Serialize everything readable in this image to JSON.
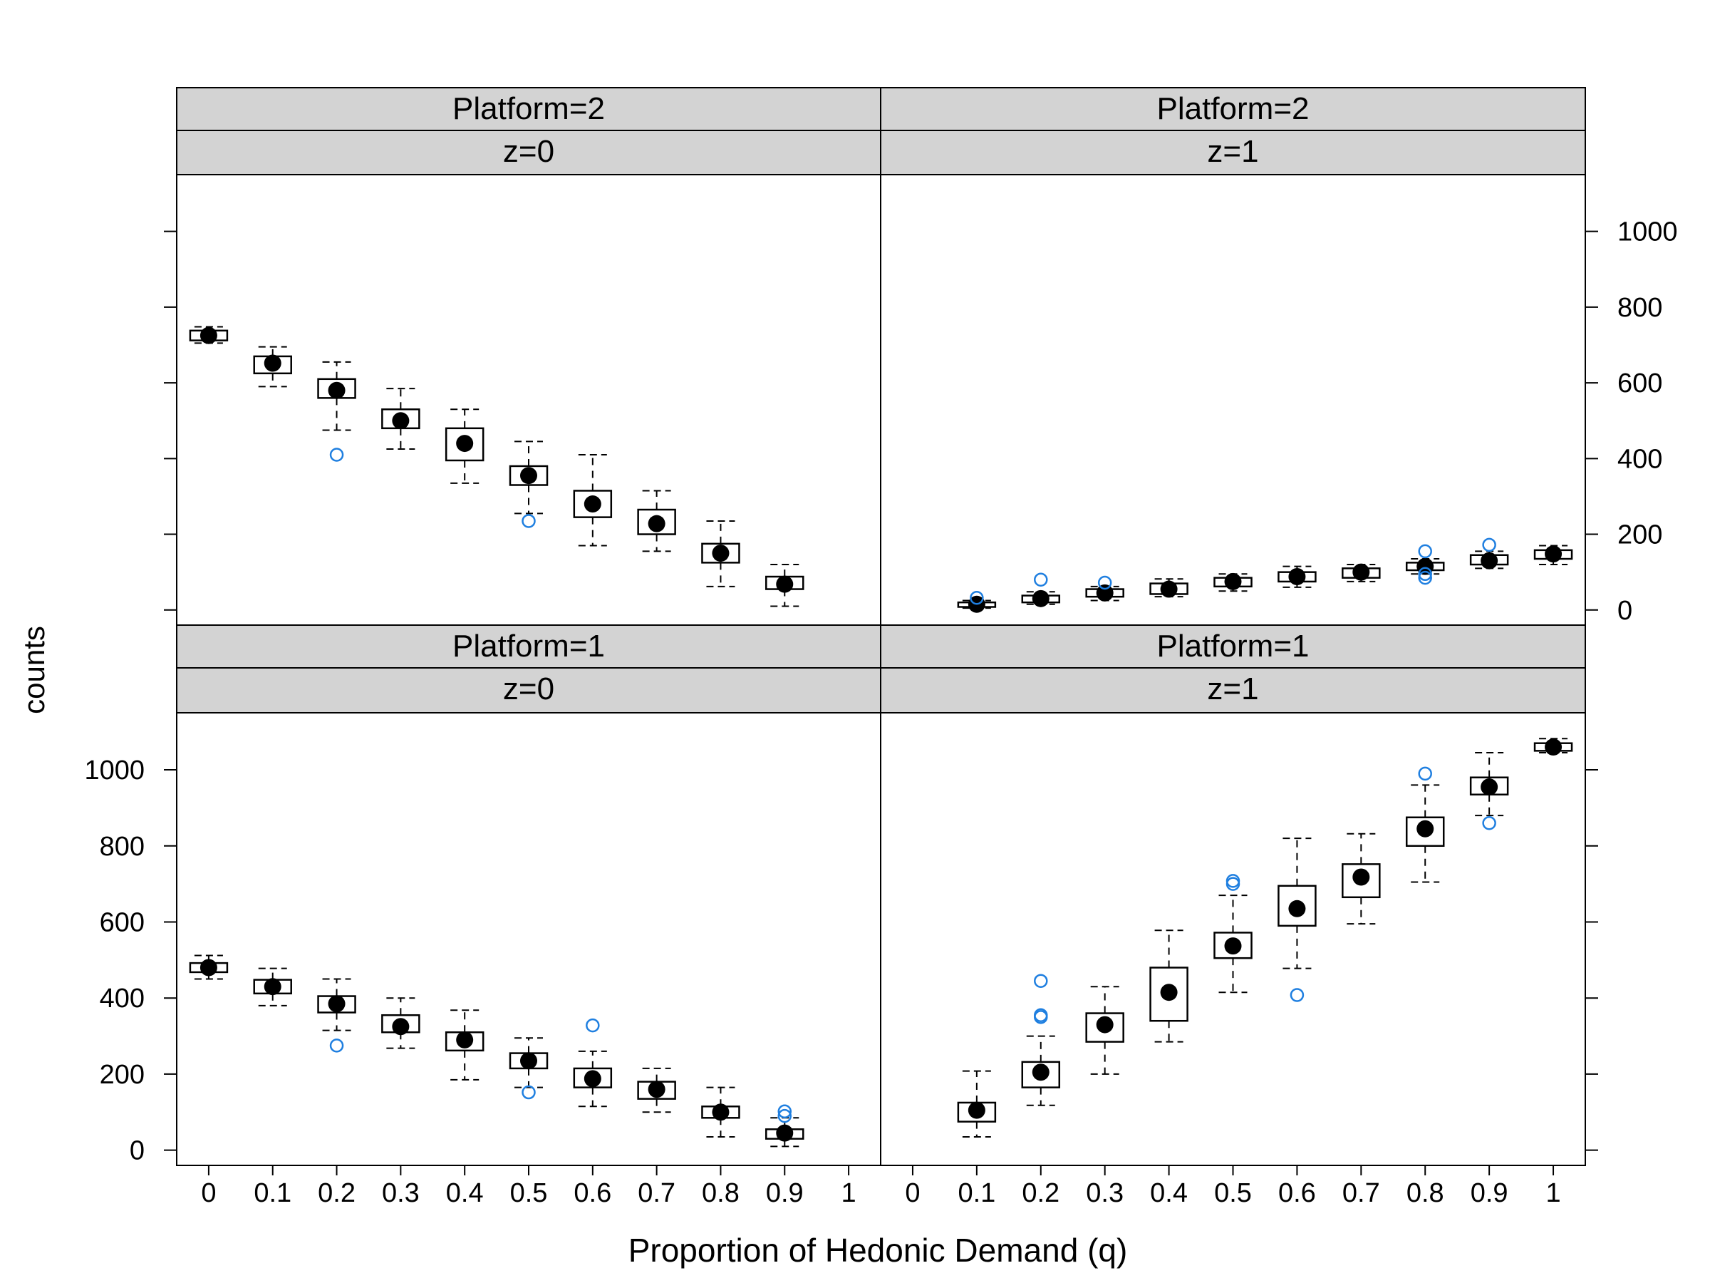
{
  "chart_data": {
    "type": "boxplot",
    "xlabel": "Proportion of Hedonic Demand (q)",
    "ylabel": "counts",
    "x_ticks": [
      "0",
      "0.1",
      "0.2",
      "0.3",
      "0.4",
      "0.5",
      "0.6",
      "0.7",
      "0.8",
      "0.9",
      "1"
    ],
    "y_ticks": [
      "0",
      "200",
      "400",
      "600",
      "800",
      "1000"
    ],
    "ylim": [
      -40,
      1150
    ],
    "colors": {
      "strip_bg": "#d3d3d3",
      "median_dot": "#000000",
      "outlier": "#1f7fe0",
      "frame": "#000000"
    },
    "panels": [
      {
        "id": "p2z0",
        "strip1": "Platform=2",
        "strip2": "z=0",
        "boxes": [
          {
            "x": 0.0,
            "min": 705,
            "q1": 712,
            "med": 725,
            "q3": 738,
            "max": 748,
            "out": []
          },
          {
            "x": 0.1,
            "min": 590,
            "q1": 625,
            "med": 652,
            "q3": 670,
            "max": 695,
            "out": []
          },
          {
            "x": 0.2,
            "min": 475,
            "q1": 560,
            "med": 580,
            "q3": 610,
            "max": 655,
            "out": [
              410
            ]
          },
          {
            "x": 0.3,
            "min": 425,
            "q1": 480,
            "med": 500,
            "q3": 530,
            "max": 585,
            "out": []
          },
          {
            "x": 0.4,
            "min": 335,
            "q1": 395,
            "med": 440,
            "q3": 480,
            "max": 530,
            "out": []
          },
          {
            "x": 0.5,
            "min": 255,
            "q1": 330,
            "med": 355,
            "q3": 380,
            "max": 445,
            "out": [
              235
            ]
          },
          {
            "x": 0.6,
            "min": 170,
            "q1": 245,
            "med": 280,
            "q3": 315,
            "max": 410,
            "out": []
          },
          {
            "x": 0.7,
            "min": 155,
            "q1": 200,
            "med": 228,
            "q3": 265,
            "max": 315,
            "out": []
          },
          {
            "x": 0.8,
            "min": 62,
            "q1": 125,
            "med": 150,
            "q3": 175,
            "max": 235,
            "out": []
          },
          {
            "x": 0.9,
            "min": 10,
            "q1": 55,
            "med": 68,
            "q3": 88,
            "max": 120,
            "out": []
          }
        ]
      },
      {
        "id": "p2z1",
        "strip1": "Platform=2",
        "strip2": "z=1",
        "boxes": [
          {
            "x": 0.1,
            "min": 5,
            "q1": 8,
            "med": 15,
            "q3": 20,
            "max": 25,
            "out": [
              32
            ]
          },
          {
            "x": 0.2,
            "min": 15,
            "q1": 20,
            "med": 30,
            "q3": 38,
            "max": 48,
            "out": [
              80
            ]
          },
          {
            "x": 0.3,
            "min": 25,
            "q1": 35,
            "med": 45,
            "q3": 55,
            "max": 62,
            "out": [
              72
            ]
          },
          {
            "x": 0.4,
            "min": 35,
            "q1": 42,
            "med": 55,
            "q3": 70,
            "max": 82,
            "out": []
          },
          {
            "x": 0.5,
            "min": 50,
            "q1": 62,
            "med": 75,
            "q3": 85,
            "max": 95,
            "out": []
          },
          {
            "x": 0.6,
            "min": 60,
            "q1": 75,
            "med": 88,
            "q3": 100,
            "max": 115,
            "out": []
          },
          {
            "x": 0.7,
            "min": 75,
            "q1": 85,
            "med": 100,
            "q3": 110,
            "max": 120,
            "out": []
          },
          {
            "x": 0.8,
            "min": 95,
            "q1": 105,
            "med": 115,
            "q3": 125,
            "max": 135,
            "out": [
              85,
              95,
              155
            ]
          },
          {
            "x": 0.9,
            "min": 110,
            "q1": 120,
            "med": 130,
            "q3": 145,
            "max": 155,
            "out": [
              172
            ]
          },
          {
            "x": 1.0,
            "min": 120,
            "q1": 135,
            "med": 148,
            "q3": 158,
            "max": 170,
            "out": []
          }
        ]
      },
      {
        "id": "p1z0",
        "strip1": "Platform=1",
        "strip2": "z=0",
        "boxes": [
          {
            "x": 0.0,
            "min": 450,
            "q1": 468,
            "med": 480,
            "q3": 492,
            "max": 512,
            "out": []
          },
          {
            "x": 0.1,
            "min": 380,
            "q1": 412,
            "med": 430,
            "q3": 448,
            "max": 478,
            "out": []
          },
          {
            "x": 0.2,
            "min": 315,
            "q1": 362,
            "med": 385,
            "q3": 405,
            "max": 450,
            "out": [
              275
            ]
          },
          {
            "x": 0.3,
            "min": 268,
            "q1": 310,
            "med": 325,
            "q3": 355,
            "max": 400,
            "out": []
          },
          {
            "x": 0.4,
            "min": 185,
            "q1": 262,
            "med": 290,
            "q3": 310,
            "max": 368,
            "out": []
          },
          {
            "x": 0.5,
            "min": 165,
            "q1": 215,
            "med": 235,
            "q3": 255,
            "max": 295,
            "out": [
              152
            ]
          },
          {
            "x": 0.6,
            "min": 115,
            "q1": 165,
            "med": 188,
            "q3": 215,
            "max": 260,
            "out": [
              328
            ]
          },
          {
            "x": 0.7,
            "min": 100,
            "q1": 135,
            "med": 160,
            "q3": 180,
            "max": 215,
            "out": []
          },
          {
            "x": 0.8,
            "min": 35,
            "q1": 85,
            "med": 100,
            "q3": 115,
            "max": 165,
            "out": []
          },
          {
            "x": 0.9,
            "min": 10,
            "q1": 30,
            "med": 45,
            "q3": 55,
            "max": 85,
            "out": [
              90,
              102
            ]
          }
        ]
      },
      {
        "id": "p1z1",
        "strip1": "Platform=1",
        "strip2": "z=1",
        "boxes": [
          {
            "x": 0.1,
            "min": 35,
            "q1": 75,
            "med": 105,
            "q3": 125,
            "max": 208,
            "out": []
          },
          {
            "x": 0.2,
            "min": 118,
            "q1": 165,
            "med": 205,
            "q3": 232,
            "max": 300,
            "out": [
              350,
              355,
              445
            ]
          },
          {
            "x": 0.3,
            "min": 200,
            "q1": 285,
            "med": 330,
            "q3": 360,
            "max": 430,
            "out": []
          },
          {
            "x": 0.4,
            "min": 285,
            "q1": 340,
            "med": 415,
            "q3": 480,
            "max": 578,
            "out": []
          },
          {
            "x": 0.5,
            "min": 415,
            "q1": 505,
            "med": 537,
            "q3": 572,
            "max": 670,
            "out": [
              700,
              708
            ]
          },
          {
            "x": 0.6,
            "min": 478,
            "q1": 590,
            "med": 635,
            "q3": 695,
            "max": 820,
            "out": [
              408
            ]
          },
          {
            "x": 0.7,
            "min": 595,
            "q1": 665,
            "med": 718,
            "q3": 752,
            "max": 832,
            "out": []
          },
          {
            "x": 0.8,
            "min": 705,
            "q1": 800,
            "med": 845,
            "q3": 875,
            "max": 960,
            "out": [
              990
            ]
          },
          {
            "x": 0.9,
            "min": 880,
            "q1": 935,
            "med": 955,
            "q3": 980,
            "max": 1045,
            "out": [
              860
            ]
          },
          {
            "x": 1.0,
            "min": 1045,
            "q1": 1050,
            "med": 1060,
            "q3": 1070,
            "max": 1082,
            "out": []
          }
        ]
      }
    ]
  }
}
